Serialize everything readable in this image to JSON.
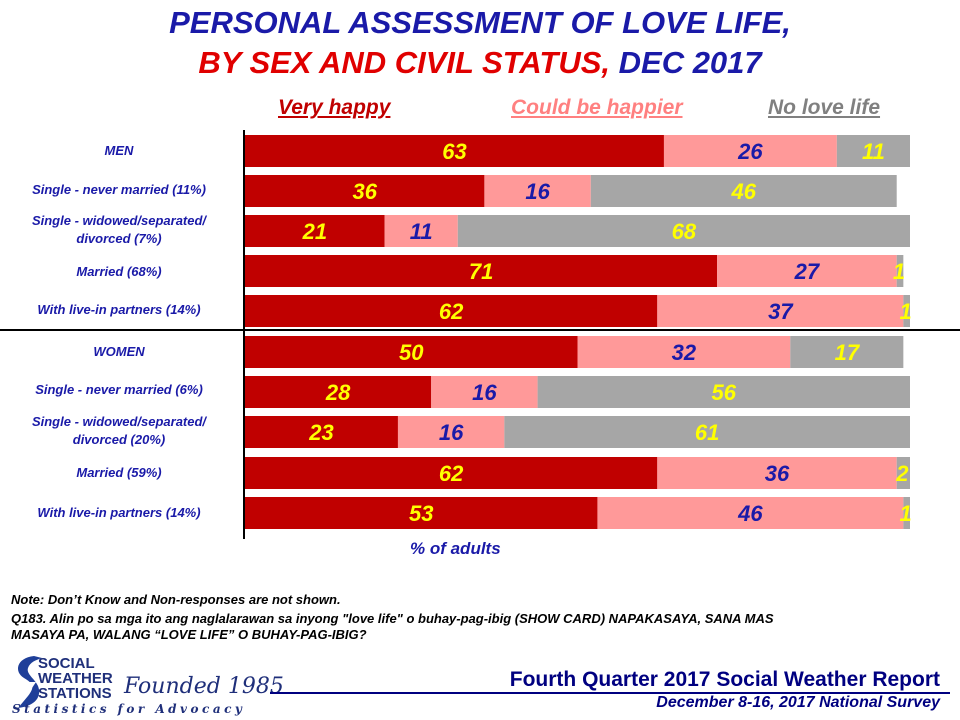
{
  "title": {
    "line1": "PERSONAL ASSESSMENT OF LOVE LIFE,",
    "line2_a": "BY SEX AND CIVIL STATUS,",
    "line2_b": " DEC 2017"
  },
  "colors": {
    "very_happy": "#c00000",
    "could_be_happier": "#ff9999",
    "no_love_life": "#a6a6a6",
    "label_on_dark": "#ffff00",
    "label_on_light": "#1a1aa8",
    "title_blue": "#1a1aa8",
    "title_red": "#e00000"
  },
  "chart_data": {
    "type": "bar",
    "orientation": "horizontal",
    "stacked": true,
    "xlabel": "% of adults",
    "xlim": [
      0,
      100
    ],
    "legend_placement": "top",
    "categories": [
      "MEN",
      "Single - never married (11%)",
      "Single - widowed/separated/ divorced (7%)",
      "Married (68%)",
      "With live-in partners (14%)",
      "WOMEN",
      "Single - never married (6%)",
      "Single - widowed/separated/ divorced (20%)",
      "Married (59%)",
      "With live-in partners (14%)"
    ],
    "series": [
      {
        "name": "Very happy",
        "values": [
          63,
          36,
          21,
          71,
          62,
          50,
          28,
          23,
          62,
          53
        ]
      },
      {
        "name": "Could be happier",
        "values": [
          26,
          16,
          11,
          27,
          37,
          32,
          16,
          16,
          36,
          46
        ]
      },
      {
        "name": "No love life",
        "values": [
          11,
          46,
          68,
          1,
          1,
          17,
          56,
          61,
          2,
          1
        ]
      }
    ]
  },
  "row_labels": [
    {
      "line1": "MEN",
      "line2": ""
    },
    {
      "line1": "Single - never married (11%)",
      "line2": ""
    },
    {
      "line1": "Single - widowed/separated/",
      "line2": "divorced (7%)"
    },
    {
      "line1": "Married (68%)",
      "line2": ""
    },
    {
      "line1": "With live-in partners (14%)",
      "line2": ""
    },
    {
      "line1": "WOMEN",
      "line2": ""
    },
    {
      "line1": "Single - never married (6%)",
      "line2": ""
    },
    {
      "line1": "Single - widowed/separated/",
      "line2": "divorced (20%)"
    },
    {
      "line1": "Married (59%)",
      "line2": ""
    },
    {
      "line1": "With live-in partners (14%)",
      "line2": ""
    }
  ],
  "notes": {
    "note1": "Note: Don’t Know and Non-responses are not shown.",
    "note2": "Q183. Alin po sa mga ito ang naglalarawan sa inyong \"love life\" o buhay-pag-ibig  (SHOW CARD) NAPAKASAYA, SANA MAS",
    "note3": "MASAYA PA, WALANG “LOVE LIFE” O BUHAY-PAG-IBIG?"
  },
  "footer": {
    "logo_line1": "SOCIAL",
    "logo_line2": "WEATHER",
    "logo_line3": "STATIONS",
    "founded": "Founded 1985",
    "tagline": "Statistics for Advocacy",
    "report": "Fourth Quarter 2017 Social Weather Report",
    "survey": "December 8-16, 2017 National Survey"
  }
}
